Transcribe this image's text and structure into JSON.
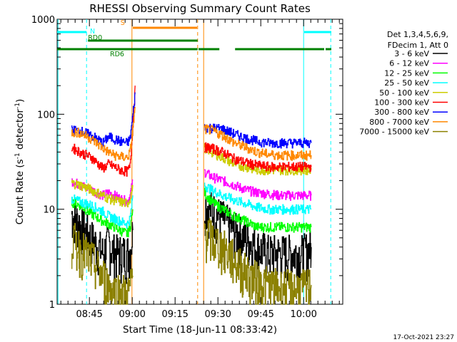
{
  "chart_data": {
    "type": "line",
    "title": "RHESSI Observing Summary Count Rates",
    "xlabel": "Start Time (18-Jun-11 08:33:42)",
    "ylabel": "Count Rate (s",
    "ylabel_sup1": "-1",
    "ylabel_mid": " detector",
    "ylabel_sup2": "-1",
    "ylabel_end": ")",
    "y_scale": "log",
    "ylim": [
      1,
      1000
    ],
    "xlim_minutes": [
      0,
      100
    ],
    "xticks": [
      {
        "t": 11.3,
        "label": "08:45"
      },
      {
        "t": 26.3,
        "label": "09:00"
      },
      {
        "t": 41.3,
        "label": "09:15"
      },
      {
        "t": 56.3,
        "label": "09:30"
      },
      {
        "t": 71.3,
        "label": "09:45"
      },
      {
        "t": 86.3,
        "label": "10:00"
      }
    ],
    "yticks": [
      {
        "v": 1,
        "label": "1"
      },
      {
        "v": 10,
        "label": "10"
      },
      {
        "v": 100,
        "label": "100"
      },
      {
        "v": 1000,
        "label": "1000"
      }
    ],
    "legend_header": [
      "Det 1,3,4,5,6,9,",
      "FDecim 1, Att 0"
    ],
    "series": [
      {
        "name": "3 - 6 keV",
        "color": "#000000",
        "x": [
          5,
          8,
          12,
          16,
          18,
          20,
          22,
          24.5,
          25.5,
          26.5,
          51.5,
          54,
          58,
          62,
          66,
          70,
          74,
          78,
          82,
          86,
          89
        ],
        "y": [
          9,
          7,
          5,
          3.5,
          4.5,
          3.5,
          3.5,
          3.5,
          3.8,
          6,
          12,
          10,
          8,
          6,
          5,
          4,
          3.5,
          3.5,
          3.5,
          3.5,
          4
        ]
      },
      {
        "name": "6 - 12 keV",
        "color": "#ff00ff",
        "x": [
          5,
          8,
          12,
          16,
          18,
          20,
          22,
          24.5,
          25.5,
          26.5,
          51.5,
          54,
          58,
          62,
          66,
          70,
          74,
          78,
          82,
          86,
          89
        ],
        "y": [
          20,
          18,
          16,
          14,
          15,
          14,
          13,
          12,
          14,
          20,
          25,
          22,
          20,
          18,
          16,
          15,
          14.5,
          14,
          14,
          14,
          14
        ]
      },
      {
        "name": "12 - 25 keV",
        "color": "#00ff00",
        "x": [
          5,
          8,
          12,
          16,
          18,
          20,
          22,
          24.5,
          25.5,
          26.5,
          51.5,
          54,
          58,
          62,
          66,
          70,
          74,
          78,
          82,
          86,
          89
        ],
        "y": [
          12,
          11,
          9,
          7.5,
          7,
          6.5,
          6,
          5.5,
          6.5,
          10,
          15,
          12,
          10,
          8.5,
          7.5,
          6.5,
          6.5,
          6.5,
          6.5,
          6.5,
          6.5
        ]
      },
      {
        "name": "25 - 50 keV",
        "color": "#00ffff",
        "x": [
          5,
          8,
          12,
          16,
          18,
          20,
          22,
          24.5,
          25.5,
          26.5,
          51.5,
          54,
          58,
          62,
          66,
          70,
          74,
          78,
          82,
          86,
          89
        ],
        "y": [
          13,
          12,
          11,
          9.5,
          8.5,
          8,
          7.5,
          7,
          8,
          14,
          18,
          16,
          14,
          12.5,
          11.5,
          10.5,
          10,
          10,
          10,
          10,
          10
        ]
      },
      {
        "name": "50 - 100 keV",
        "color": "#cccc00",
        "x": [
          5,
          8,
          12,
          16,
          18,
          20,
          22,
          24.5,
          25.5,
          26.5,
          51.5,
          54,
          58,
          62,
          66,
          70,
          74,
          78,
          82,
          86,
          89
        ],
        "y": [
          19,
          18,
          16,
          14,
          13,
          12.5,
          12,
          11.5,
          13,
          18,
          45,
          40,
          35,
          30,
          28,
          26,
          26,
          26,
          26,
          26,
          26
        ]
      },
      {
        "name": "100 - 300 keV",
        "color": "#ff0000",
        "x": [
          5,
          8,
          12,
          16,
          18,
          20,
          22,
          24.5,
          25.5,
          26.5,
          27.3,
          51.5,
          54,
          58,
          62,
          66,
          70,
          74,
          78,
          82,
          86,
          89
        ],
        "y": [
          45,
          40,
          35,
          27,
          30,
          28,
          26,
          25,
          28,
          80,
          200,
          45,
          44,
          40,
          34,
          31,
          29,
          28,
          28,
          28,
          28,
          28
        ]
      },
      {
        "name": "300 - 800 keV",
        "color": "#0000ff",
        "x": [
          5,
          8,
          12,
          16,
          18,
          20,
          22,
          24.5,
          25.5,
          26.5,
          27.3,
          51.5,
          54,
          58,
          62,
          66,
          70,
          74,
          78,
          82,
          86,
          89
        ],
        "y": [
          68,
          67,
          60,
          50,
          58,
          55,
          52,
          50,
          55,
          100,
          170,
          73,
          72,
          70,
          62,
          56,
          52,
          50,
          50,
          50,
          50,
          50
        ]
      },
      {
        "name": "800 - 7000 keV",
        "color": "#ff8800",
        "x": [
          5,
          8,
          12,
          16,
          18,
          20,
          22,
          24.5,
          25.5,
          26.5,
          27.3,
          51.5,
          54,
          58,
          62,
          66,
          70,
          74,
          78,
          82,
          86,
          89
        ],
        "y": [
          65,
          64,
          55,
          44,
          40,
          37,
          36,
          35,
          40,
          70,
          120,
          70,
          68,
          60,
          50,
          45,
          40,
          38,
          37,
          37,
          37,
          37
        ]
      },
      {
        "name": "7000 - 15000 keV",
        "color": "#8b8000",
        "x": [
          5,
          8,
          12,
          16,
          18,
          20,
          22,
          24.5,
          25.5,
          26.5,
          51.5,
          54,
          58,
          62,
          66,
          70,
          74,
          78,
          82,
          86,
          89
        ],
        "y": [
          5,
          4,
          3,
          2,
          1.6,
          1.4,
          1.4,
          1.3,
          1.5,
          2,
          6,
          5,
          4,
          3,
          2.2,
          1.8,
          1.6,
          1.5,
          1.5,
          1.5,
          1.6
        ]
      }
    ],
    "flag_bars": [
      {
        "name": "N",
        "color": "#00ffff",
        "y_frac": 0.955,
        "segments": [
          [
            0,
            10.3
          ],
          [
            86.5,
            96
          ]
        ],
        "label_t": 11.5
      },
      {
        "name": "S",
        "color": "#ff8800",
        "y_frac": 0.97,
        "segments": [
          [
            26.5,
            49
          ]
        ],
        "label_t": 22.2
      },
      {
        "name": "RD0",
        "color": "#008000",
        "y_frac": 0.925,
        "segments": [
          [
            10.8,
            49.2
          ]
        ],
        "label_t": 10.8
      },
      {
        "name": "RD6",
        "color": "#008000",
        "y_frac": 0.895,
        "segments": [
          [
            0,
            49.2
          ],
          [
            49.5,
            56.8
          ],
          [
            62.3,
            93.5
          ],
          [
            94,
            96
          ]
        ],
        "label_t": 18.5
      }
    ],
    "vlines": [
      {
        "t": 0.3,
        "color": "#00ffff",
        "style": "solid"
      },
      {
        "t": 10.3,
        "color": "#00ffff",
        "style": "dashed"
      },
      {
        "t": 26.2,
        "color": "#ff8800",
        "style": "solid"
      },
      {
        "t": 49.2,
        "color": "#ff8800",
        "style": "dashed"
      },
      {
        "t": 51.3,
        "color": "#ff8800",
        "style": "solid"
      },
      {
        "t": 86.3,
        "color": "#00ffff",
        "style": "solid"
      },
      {
        "t": 95.8,
        "color": "#00ffff",
        "style": "dashed"
      }
    ],
    "timestamp": "17-Oct-2021 23:27"
  }
}
